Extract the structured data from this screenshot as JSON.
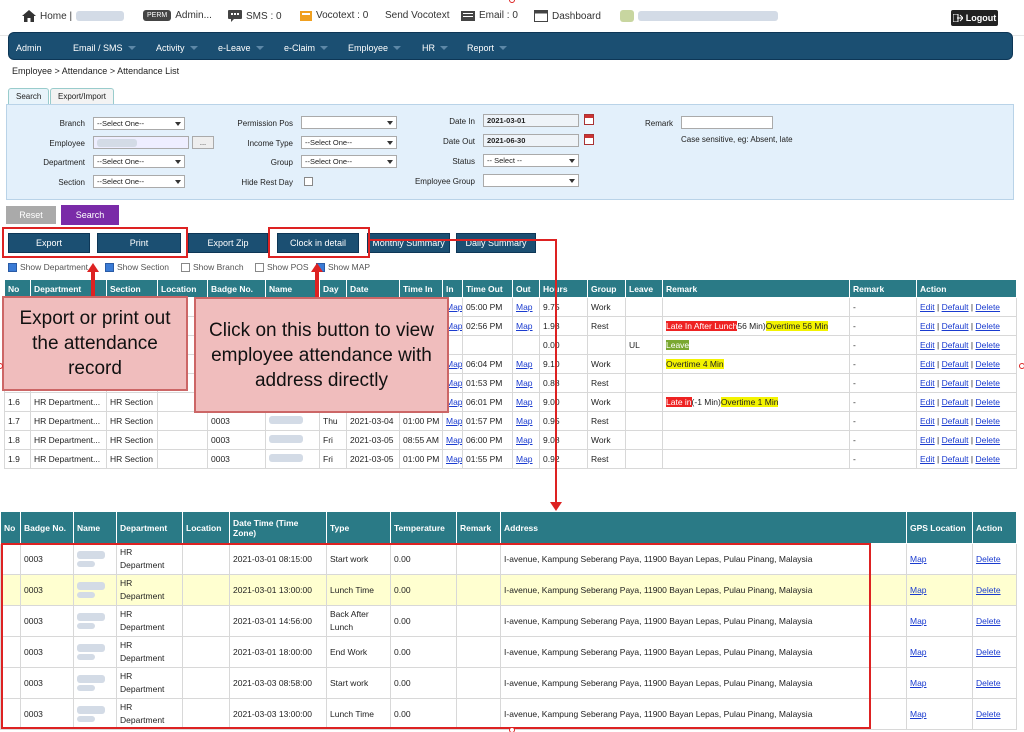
{
  "topbar": {
    "home": "Home |",
    "perm_badge": "PERM",
    "admin": "Admin...",
    "sms": "SMS : 0",
    "vocotext": "Vocotext : 0",
    "send_vocotext": "Send Vocotext",
    "email": "Email : 0",
    "dashboard": "Dashboard",
    "logout": "Logout"
  },
  "nav": [
    "Admin",
    "Email / SMS",
    "Activity",
    "e-Leave",
    "e-Claim",
    "Employee",
    "HR",
    "Report"
  ],
  "breadcrumb": "Employee > Attendance > Attendance List",
  "tabs": {
    "search": "Search",
    "export": "Export/Import"
  },
  "filters": {
    "branch": {
      "label": "Branch",
      "value": "--Select One--"
    },
    "employee": {
      "label": "Employee",
      "button": "..."
    },
    "department": {
      "label": "Department",
      "value": "--Select One--"
    },
    "section": {
      "label": "Section",
      "value": "--Select One--"
    },
    "permission_pos": {
      "label": "Permission Pos",
      "value": ""
    },
    "income_type": {
      "label": "Income Type",
      "value": "--Select One--"
    },
    "group": {
      "label": "Group",
      "value": "--Select One--"
    },
    "hide_rest_day": {
      "label": "Hide Rest Day"
    },
    "date_in": {
      "label": "Date In",
      "value": "2021-03-01"
    },
    "date_out": {
      "label": "Date Out",
      "value": "2021-06-30"
    },
    "status": {
      "label": "Status",
      "value": "-- Select --"
    },
    "employee_group": {
      "label": "Employee Group",
      "value": ""
    },
    "remark": {
      "label": "Remark",
      "hint": "Case sensitive, eg: Absent, late"
    }
  },
  "buttons": {
    "reset": "Reset",
    "search": "Search",
    "export": "Export",
    "print": "Print",
    "export_zip": "Export Zip",
    "clock_detail": "Clock in detail",
    "monthly": "Monthly Summary",
    "daily": "Daily Summary"
  },
  "show_options": [
    {
      "label": "Show Department",
      "checked": true
    },
    {
      "label": "Show Section",
      "checked": true
    },
    {
      "label": "Show Branch",
      "checked": false
    },
    {
      "label": "Show POS",
      "checked": false
    },
    {
      "label": "Show MAP",
      "checked": true
    }
  ],
  "top_table": {
    "headers": [
      "No",
      "Department",
      "Section",
      "Location",
      "Badge No.",
      "Name",
      "Day",
      "Date",
      "Time In",
      "In",
      "Time Out",
      "Out",
      "Hours",
      "Group",
      "Leave",
      "Remark",
      "Remark",
      "Action"
    ],
    "rows": [
      {
        "no": "",
        "dept": "",
        "section": "",
        "badge": "",
        "day": "",
        "date": "",
        "tin": "",
        "in": "Map",
        "tout": "05:00 PM",
        "out": "Map",
        "hours": "9.75",
        "group": "Work",
        "leave": "",
        "remark": [],
        "remark2": "-"
      },
      {
        "no": "",
        "dept": "",
        "section": "",
        "badge": "",
        "day": "",
        "date": "",
        "tin": "",
        "in": "Map",
        "tout": "02:56 PM",
        "out": "Map",
        "hours": "1.93",
        "group": "Rest",
        "leave": "",
        "remark": [
          {
            "t": "Late In After Lunch",
            "c": "red"
          },
          {
            "t": "56 Min)",
            "c": ""
          },
          {
            "t": "Overtime 56 Min",
            "c": "yel"
          }
        ],
        "remark2": "-"
      },
      {
        "no": "",
        "dept": "",
        "section": "",
        "badge": "",
        "day": "",
        "date": "",
        "tin": "",
        "in": "",
        "tout": "",
        "out": "",
        "hours": "0.00",
        "group": "",
        "leave": "UL",
        "remark": [
          {
            "t": "Leave",
            "c": "grn"
          }
        ],
        "remark2": "-"
      },
      {
        "no": "",
        "dept": "",
        "section": "",
        "badge": "",
        "day": "",
        "date": "",
        "tin": "",
        "in": "Map",
        "tout": "06:04 PM",
        "out": "Map",
        "hours": "9.10",
        "group": "Work",
        "leave": "",
        "remark": [
          {
            "t": "Overtime 4 Min",
            "c": "yel"
          }
        ],
        "remark2": "-"
      },
      {
        "no": "",
        "dept": "",
        "section": "",
        "badge": "",
        "day": "",
        "date": "",
        "tin": "",
        "in": "Map",
        "tout": "01:53 PM",
        "out": "Map",
        "hours": "0.88",
        "group": "Rest",
        "leave": "",
        "remark": [],
        "remark2": "-"
      },
      {
        "no": "1.6",
        "dept": "HR Department...",
        "section": "HR Section",
        "badge": "",
        "day": "",
        "date": "",
        "tin": "",
        "in": "Map",
        "tout": "06:01 PM",
        "out": "Map",
        "hours": "9.00",
        "group": "Work",
        "leave": "",
        "remark": [
          {
            "t": "Late in",
            "c": "red"
          },
          {
            "t": "(-1 Min)",
            "c": ""
          },
          {
            "t": "Overtime 1 Min",
            "c": "yel"
          }
        ],
        "remark2": "-"
      },
      {
        "no": "1.7",
        "dept": "HR Department...",
        "section": "HR Section",
        "badge": "0003",
        "day": "Thu",
        "date": "2021-03-04",
        "tin": "01:00 PM",
        "in": "Map",
        "tout": "01:57 PM",
        "out": "Map",
        "hours": "0.95",
        "group": "Rest",
        "leave": "",
        "remark": [],
        "remark2": "-"
      },
      {
        "no": "1.8",
        "dept": "HR Department...",
        "section": "HR Section",
        "badge": "0003",
        "day": "Fri",
        "date": "2021-03-05",
        "tin": "08:55 AM",
        "in": "Map",
        "tout": "06:00 PM",
        "out": "Map",
        "hours": "9.08",
        "group": "Work",
        "leave": "",
        "remark": [],
        "remark2": "-"
      },
      {
        "no": "1.9",
        "dept": "HR Department...",
        "section": "HR Section",
        "badge": "0003",
        "day": "Fri",
        "date": "2021-03-05",
        "tin": "01:00 PM",
        "in": "Map",
        "tout": "01:55 PM",
        "out": "Map",
        "hours": "0.92",
        "group": "Rest",
        "leave": "",
        "remark": [],
        "remark2": "-"
      }
    ],
    "actions": [
      "Edit",
      "Default",
      "Delete"
    ]
  },
  "bottom_table": {
    "headers": [
      "No",
      "Badge No.",
      "Name",
      "Department",
      "Location",
      "Date Time (Time Zone)",
      "Type",
      "Temperature",
      "Remark",
      "Address",
      "GPS Location",
      "Action"
    ],
    "rows": [
      {
        "badge": "0003",
        "dept": "HR Department",
        "dt": "2021-03-01 08:15:00",
        "type": "Start work",
        "temp": "0.00"
      },
      {
        "badge": "0003",
        "dept": "HR Department",
        "dt": "2021-03-01 13:00:00",
        "type": "Lunch Time",
        "temp": "0.00"
      },
      {
        "badge": "0003",
        "dept": "HR Department",
        "dt": "2021-03-01 14:56:00",
        "type": "Back After Lunch",
        "temp": "0.00"
      },
      {
        "badge": "0003",
        "dept": "HR Department",
        "dt": "2021-03-01 18:00:00",
        "type": "End Work",
        "temp": "0.00"
      },
      {
        "badge": "0003",
        "dept": "HR Department",
        "dt": "2021-03-03 08:58:00",
        "type": "Start work",
        "temp": "0.00"
      },
      {
        "badge": "0003",
        "dept": "HR Department",
        "dt": "2021-03-03 13:00:00",
        "type": "Lunch Time",
        "temp": "0.00"
      }
    ],
    "address": "I-avenue, Kampung Seberang Paya, 11900 Bayan Lepas, Pulau Pinang, Malaysia",
    "gps": "Map",
    "action": "Delete"
  },
  "annotations": {
    "left": "Export or print out the attendance record",
    "right": "Click on this button to view employee attendance with address directly"
  }
}
